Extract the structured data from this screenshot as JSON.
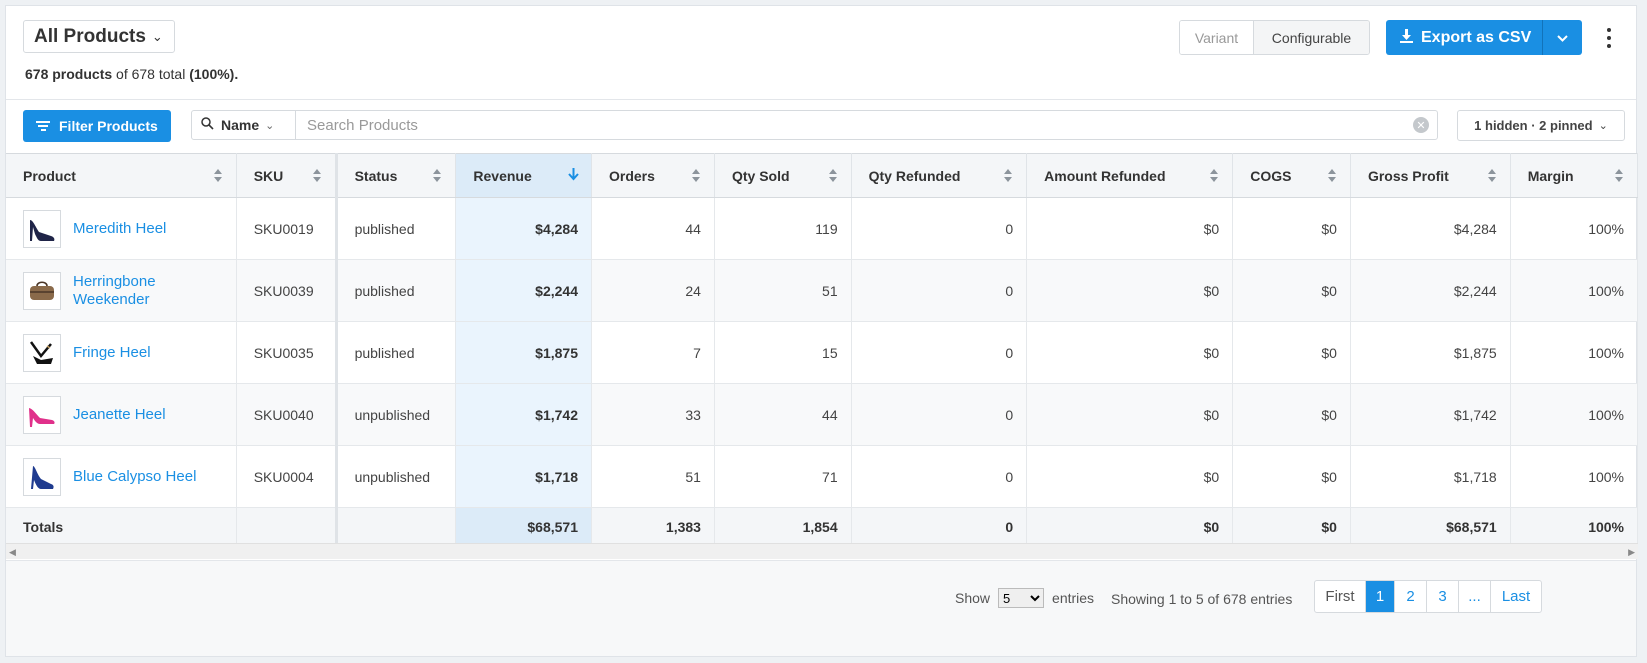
{
  "header": {
    "title": "All Products",
    "summary_count": "678 products",
    "summary_mid": " of 678 total ",
    "summary_pct": "(100%).",
    "view_variant": "Variant",
    "view_configurable": "Configurable",
    "export_label": "Export as CSV"
  },
  "toolbar": {
    "filter_label": "Filter Products",
    "search_field": "Name",
    "search_placeholder": "Search Products",
    "search_value": "",
    "columns_label": "1 hidden · 2 pinned"
  },
  "table": {
    "columns": [
      "Product",
      "SKU",
      "Status",
      "Revenue",
      "Orders",
      "Qty Sold",
      "Qty Refunded",
      "Amount Refunded",
      "COGS",
      "Gross Profit",
      "Margin"
    ],
    "sorted_column": "Revenue",
    "rows": [
      {
        "product": "Meredith Heel",
        "sku": "SKU0019",
        "status": "published",
        "revenue": "$4,284",
        "orders": "44",
        "qty_sold": "119",
        "qty_refunded": "0",
        "amount_refunded": "$0",
        "cogs": "$0",
        "gross_profit": "$4,284",
        "margin": "100%",
        "thumb": "heel-navy"
      },
      {
        "product": "Herringbone Weekender",
        "sku": "SKU0039",
        "status": "published",
        "revenue": "$2,244",
        "orders": "24",
        "qty_sold": "51",
        "qty_refunded": "0",
        "amount_refunded": "$0",
        "cogs": "$0",
        "gross_profit": "$2,244",
        "margin": "100%",
        "thumb": "bag-brown"
      },
      {
        "product": "Fringe Heel",
        "sku": "SKU0035",
        "status": "published",
        "revenue": "$1,875",
        "orders": "7",
        "qty_sold": "15",
        "qty_refunded": "0",
        "amount_refunded": "$0",
        "cogs": "$0",
        "gross_profit": "$1,875",
        "margin": "100%",
        "thumb": "heel-black"
      },
      {
        "product": "Jeanette Heel",
        "sku": "SKU0040",
        "status": "unpublished",
        "revenue": "$1,742",
        "orders": "33",
        "qty_sold": "44",
        "qty_refunded": "0",
        "amount_refunded": "$0",
        "cogs": "$0",
        "gross_profit": "$1,742",
        "margin": "100%",
        "thumb": "heel-pink"
      },
      {
        "product": "Blue Calypso Heel",
        "sku": "SKU0004",
        "status": "unpublished",
        "revenue": "$1,718",
        "orders": "51",
        "qty_sold": "71",
        "qty_refunded": "0",
        "amount_refunded": "$0",
        "cogs": "$0",
        "gross_profit": "$1,718",
        "margin": "100%",
        "thumb": "heel-blue"
      }
    ],
    "totals": {
      "label": "Totals",
      "revenue": "$68,571",
      "orders": "1,383",
      "qty_sold": "1,854",
      "qty_refunded": "0",
      "amount_refunded": "$0",
      "cogs": "$0",
      "gross_profit": "$68,571",
      "margin": "100%"
    }
  },
  "footer": {
    "show_label": "Show",
    "page_size": "5",
    "entries_label": "entries",
    "showing_text": "Showing 1 to 5 of 678 entries",
    "pager": {
      "first": "First",
      "current": "1",
      "p2": "2",
      "p3": "3",
      "ellipsis": "...",
      "last": "Last"
    }
  },
  "colors": {
    "accent": "#1a8fe3",
    "sorted_column_bg": "#eaf4fd",
    "link": "#1a8fe3"
  }
}
